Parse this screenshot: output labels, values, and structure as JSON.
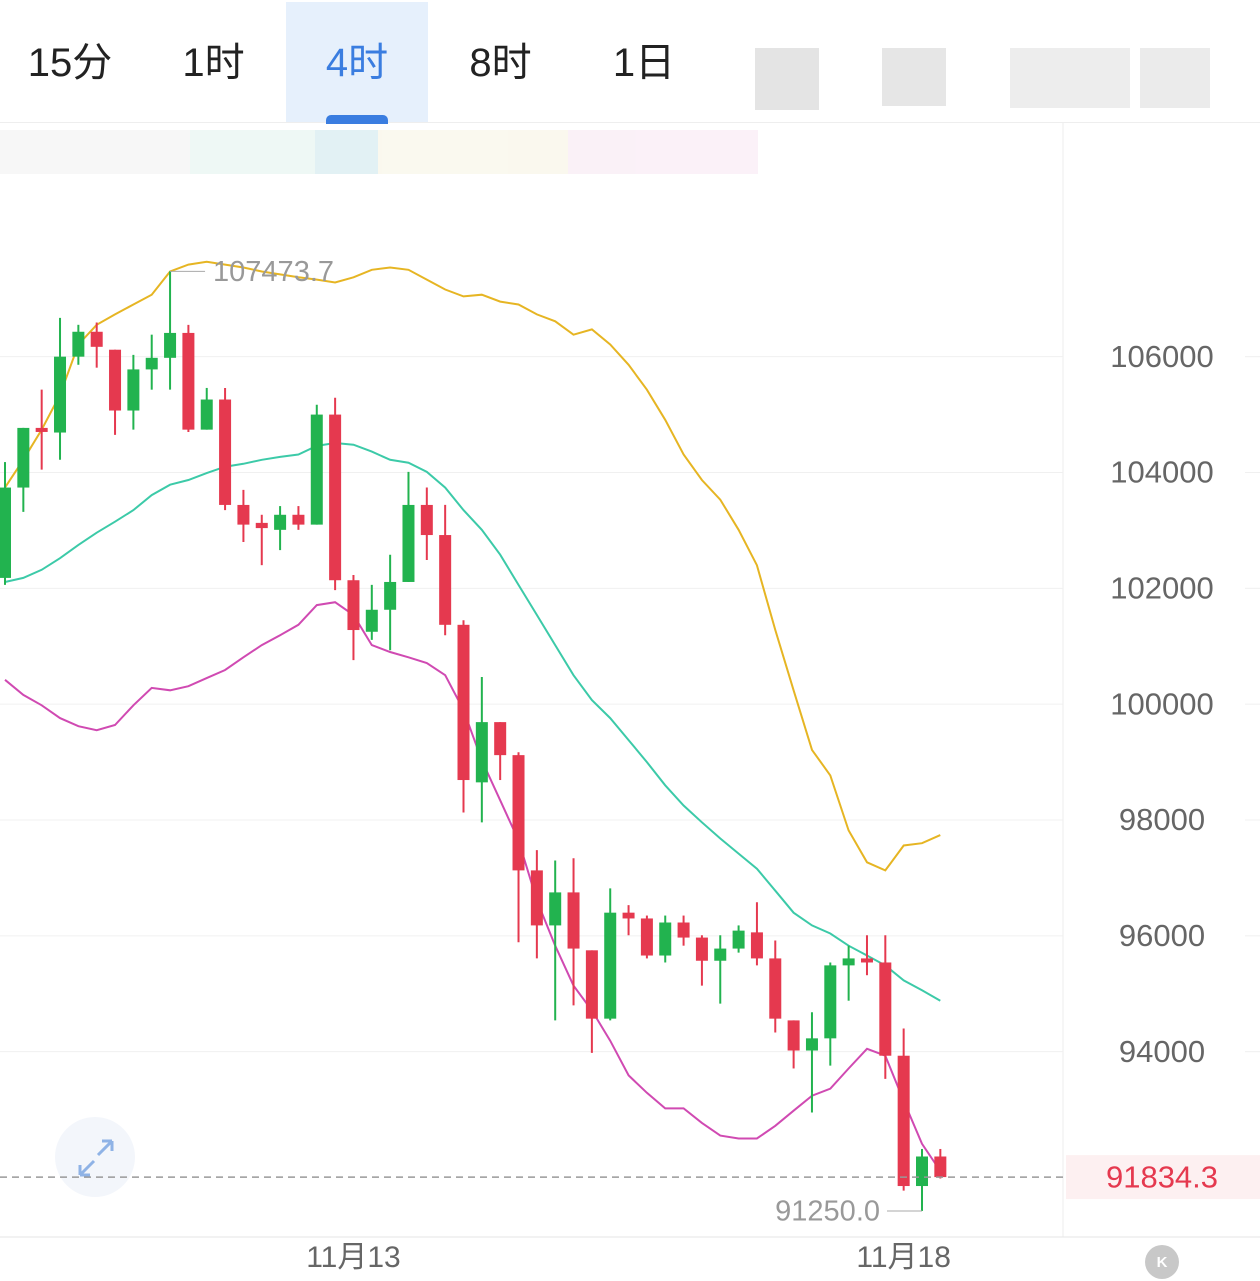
{
  "tabs": [
    "15分",
    "1时",
    "4时",
    "8时",
    "1日"
  ],
  "active_tab": 2,
  "chart_data": {
    "type": "candlestick",
    "categories": [
      null,
      null,
      null,
      null,
      null,
      null,
      null,
      null,
      null,
      null,
      null,
      null,
      null,
      null,
      null,
      null,
      null,
      null,
      null,
      "11月13",
      null,
      null,
      null,
      null,
      null,
      null,
      null,
      null,
      null,
      null,
      null,
      null,
      null,
      null,
      null,
      null,
      null,
      null,
      null,
      null,
      null,
      null,
      null,
      null,
      null,
      null,
      null,
      null,
      null,
      "11月18",
      null,
      null
    ],
    "open": [
      102180,
      103740,
      104770,
      104690,
      106000,
      106430,
      106120,
      105070,
      105780,
      105980,
      106410,
      104740,
      105260,
      103440,
      103130,
      103010,
      103270,
      103100,
      105000,
      102140,
      101250,
      101630,
      102110,
      103440,
      102920,
      101370,
      98650,
      99690,
      99120,
      97130,
      96180,
      96750,
      95750,
      94570,
      96400,
      96300,
      95660,
      96230,
      95970,
      95570,
      95780,
      96060,
      95610,
      94540,
      94020,
      94230,
      95490,
      95610,
      95540,
      93930,
      91680,
      92190
    ],
    "high": [
      104180,
      104770,
      105430,
      106670,
      106550,
      106590,
      106120,
      106030,
      106380,
      107473.7,
      106550,
      105460,
      105460,
      103700,
      103270,
      103420,
      103420,
      105170,
      105290,
      102230,
      102060,
      102580,
      104010,
      103740,
      103440,
      101450,
      100470,
      99690,
      99170,
      97480,
      97300,
      97340,
      95750,
      96820,
      96530,
      96350,
      96350,
      96350,
      96010,
      96010,
      96180,
      96580,
      95920,
      94540,
      94680,
      95540,
      95830,
      96010,
      96010,
      94400,
      92320,
      92320
    ],
    "low": [
      102060,
      103320,
      104050,
      104220,
      105860,
      105810,
      104650,
      104740,
      105430,
      105430,
      104700,
      104740,
      103350,
      102800,
      102400,
      102660,
      103010,
      103100,
      101970,
      100760,
      101110,
      100930,
      102110,
      102490,
      101190,
      98130,
      97960,
      98690,
      95890,
      95610,
      94540,
      94800,
      93980,
      94540,
      96010,
      95610,
      95540,
      95830,
      95140,
      94830,
      95710,
      95490,
      94330,
      93710,
      92950,
      93760,
      94880,
      95320,
      93530,
      91600,
      91250,
      91810
    ],
    "close": [
      103740,
      104770,
      104700,
      106000,
      106430,
      106170,
      105070,
      105780,
      105980,
      106410,
      104740,
      105260,
      103440,
      103100,
      103040,
      103270,
      103100,
      105000,
      102140,
      101280,
      101630,
      102110,
      103440,
      102920,
      101370,
      98690,
      99690,
      99120,
      97130,
      96180,
      96750,
      95780,
      94570,
      96400,
      96300,
      95660,
      96230,
      95970,
      95570,
      95780,
      96090,
      95610,
      94570,
      94020,
      94230,
      95490,
      95610,
      95540,
      93930,
      91680,
      92190,
      91834.3
    ],
    "up_color": "#22b34f",
    "down_color": "#e5394f",
    "lines": [
      {
        "color": "#e6b523",
        "values": [
          103740,
          104220,
          104740,
          105340,
          106210,
          106550,
          106730,
          106900,
          107070,
          107470,
          107590,
          107640,
          107590,
          107540,
          107470,
          107420,
          107370,
          107330,
          107280,
          107370,
          107500,
          107540,
          107500,
          107330,
          107160,
          107040,
          107070,
          106950,
          106900,
          106730,
          106610,
          106380,
          106470,
          106210,
          105860,
          105430,
          104910,
          104310,
          103870,
          103530,
          103010,
          102400,
          101280,
          100240,
          99210,
          98770,
          97820,
          97270,
          97130,
          97560,
          97600,
          97740
        ]
      },
      {
        "color": "#3ccaa8",
        "values": [
          102110,
          102180,
          102320,
          102520,
          102750,
          102960,
          103150,
          103350,
          103610,
          103790,
          103870,
          103990,
          104100,
          104150,
          104220,
          104270,
          104310,
          104460,
          104510,
          104480,
          104360,
          104220,
          104170,
          104010,
          103740,
          103350,
          103010,
          102580,
          102060,
          101540,
          101020,
          100500,
          100070,
          99760,
          99380,
          99000,
          98600,
          98250,
          97960,
          97680,
          97420,
          97160,
          96780,
          96400,
          96180,
          96040,
          95830,
          95660,
          95490,
          95230,
          95060,
          94880
        ]
      },
      {
        "color": "#d04ab2",
        "values": [
          100420,
          100160,
          99980,
          99760,
          99620,
          99550,
          99640,
          99980,
          100280,
          100240,
          100310,
          100450,
          100590,
          100810,
          101020,
          101190,
          101370,
          101710,
          101760,
          101540,
          101020,
          100900,
          100810,
          100710,
          100500,
          99900,
          99030,
          98340,
          97650,
          96610,
          95830,
          95140,
          94710,
          94190,
          93590,
          93290,
          93020,
          93020,
          92770,
          92550,
          92500,
          92500,
          92720,
          92980,
          93240,
          93360,
          93710,
          94050,
          93930,
          93150,
          92410,
          91940
        ]
      }
    ],
    "ylim": [
      90800,
      110000
    ],
    "yticks": [
      94000,
      96000,
      98000,
      100000,
      102000,
      104000,
      106000
    ],
    "grid": true,
    "high_label": {
      "value": 107473.7,
      "label": "107473.7"
    },
    "low_label": {
      "value": 91250,
      "label": "91250.0"
    },
    "last_price": 91834.3
  }
}
